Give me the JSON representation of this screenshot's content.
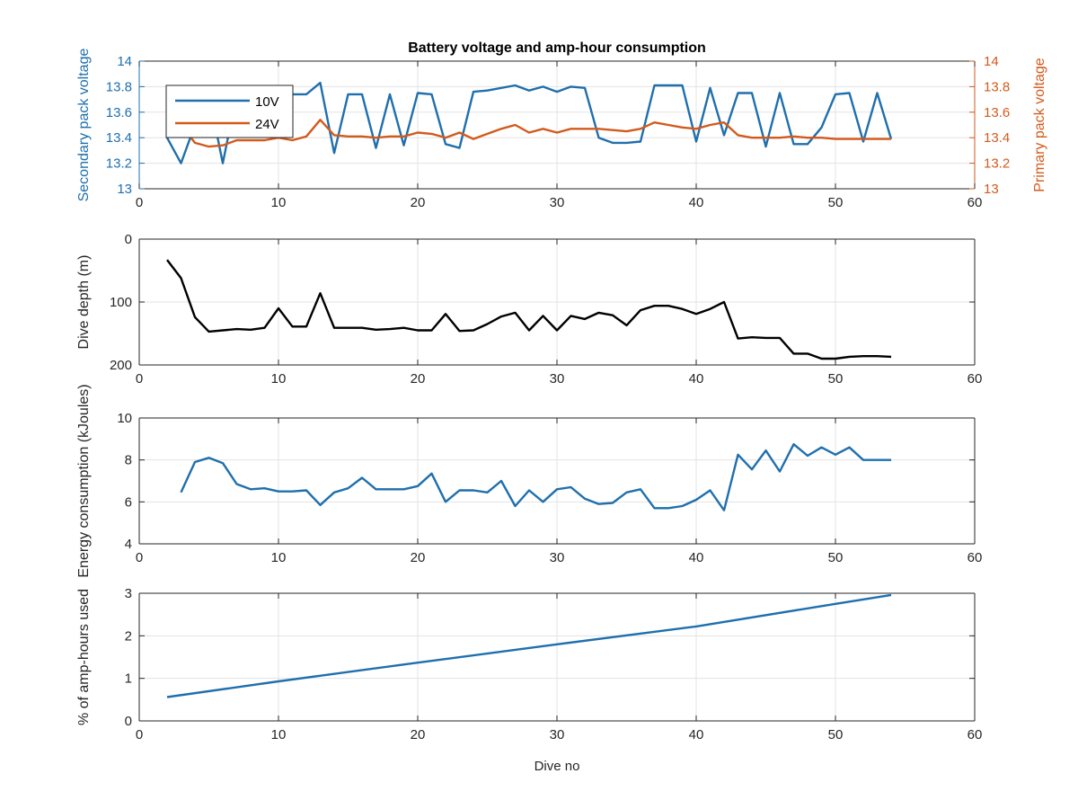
{
  "figure": {
    "title": "Battery voltage and amp-hour consumption",
    "xlabel": "Dive no"
  },
  "colors": {
    "blue": "#1f6fad",
    "orange": "#d35a1c",
    "black": "#000000",
    "grid": "#e3e3e3"
  },
  "chart_data": [
    {
      "type": "line",
      "title": "Battery voltage and amp-hour consumption",
      "xlabel": "",
      "ylabel": "Secondary pack voltage",
      "ylabel_right": "Primary pack voltage",
      "xlim": [
        0,
        60
      ],
      "ylim": [
        13,
        14
      ],
      "ylim_right": [
        13,
        14
      ],
      "xticks": [
        0,
        10,
        20,
        30,
        40,
        50,
        60
      ],
      "yticks": [
        13,
        13.2,
        13.4,
        13.6,
        13.8,
        14
      ],
      "yticks_right": [
        13,
        13.2,
        13.4,
        13.6,
        13.8,
        14
      ],
      "grid": true,
      "legend": "top-left",
      "series": [
        {
          "name": "10V",
          "axis": "left",
          "color": "#1f6fad",
          "x": [
            2,
            3,
            4,
            5,
            6,
            7,
            8,
            9,
            10,
            11,
            12,
            13,
            14,
            15,
            16,
            17,
            18,
            19,
            20,
            21,
            22,
            23,
            24,
            25,
            26,
            27,
            28,
            29,
            30,
            31,
            32,
            33,
            34,
            35,
            36,
            37,
            38,
            39,
            40,
            41,
            42,
            43,
            44,
            45,
            46,
            47,
            48,
            49,
            50,
            51,
            52,
            53,
            54
          ],
          "y": [
            13.4,
            13.2,
            13.5,
            13.74,
            13.2,
            13.74,
            13.74,
            13.74,
            13.74,
            13.74,
            13.74,
            13.83,
            13.28,
            13.74,
            13.74,
            13.32,
            13.74,
            13.34,
            13.75,
            13.74,
            13.35,
            13.32,
            13.76,
            13.77,
            13.79,
            13.81,
            13.77,
            13.8,
            13.76,
            13.8,
            13.79,
            13.4,
            13.36,
            13.36,
            13.37,
            13.81,
            13.81,
            13.81,
            13.37,
            13.79,
            13.42,
            13.75,
            13.75,
            13.33,
            13.75,
            13.35,
            13.35,
            13.48,
            13.74,
            13.75,
            13.37,
            13.75,
            13.39
          ]
        },
        {
          "name": "24V",
          "axis": "right",
          "color": "#d35a1c",
          "x": [
            2,
            3,
            4,
            5,
            6,
            7,
            8,
            9,
            10,
            11,
            12,
            13,
            14,
            15,
            16,
            17,
            18,
            19,
            20,
            21,
            22,
            23,
            24,
            25,
            26,
            27,
            28,
            29,
            30,
            31,
            32,
            33,
            34,
            35,
            36,
            37,
            38,
            39,
            40,
            41,
            42,
            43,
            44,
            45,
            46,
            47,
            48,
            49,
            50,
            51,
            52,
            53,
            54
          ],
          "y": [
            13.53,
            13.5,
            13.36,
            13.33,
            13.34,
            13.38,
            13.38,
            13.38,
            13.4,
            13.38,
            13.41,
            13.54,
            13.42,
            13.41,
            13.41,
            13.4,
            13.41,
            13.41,
            13.44,
            13.43,
            13.4,
            13.44,
            13.39,
            13.43,
            13.47,
            13.5,
            13.44,
            13.47,
            13.44,
            13.47,
            13.47,
            13.47,
            13.46,
            13.45,
            13.47,
            13.52,
            13.5,
            13.48,
            13.47,
            13.5,
            13.52,
            13.42,
            13.4,
            13.4,
            13.4,
            13.41,
            13.4,
            13.4,
            13.39,
            13.39,
            13.39,
            13.39,
            13.39
          ]
        }
      ]
    },
    {
      "type": "line",
      "title": "",
      "xlabel": "",
      "ylabel": "Dive depth (m)",
      "xlim": [
        0,
        60
      ],
      "ylim": [
        0,
        200
      ],
      "y_reversed": true,
      "xticks": [
        0,
        10,
        20,
        30,
        40,
        50,
        60
      ],
      "yticks": [
        0,
        100,
        200
      ],
      "grid": true,
      "series": [
        {
          "color": "#000000",
          "x": [
            2,
            3,
            4,
            5,
            6,
            7,
            8,
            9,
            10,
            11,
            12,
            13,
            14,
            15,
            16,
            17,
            18,
            19,
            20,
            21,
            22,
            23,
            24,
            25,
            26,
            27,
            28,
            29,
            30,
            31,
            32,
            33,
            34,
            35,
            36,
            37,
            38,
            39,
            40,
            41,
            42,
            43,
            44,
            45,
            46,
            47,
            48,
            49,
            50,
            51,
            52,
            53,
            54
          ],
          "y": [
            33,
            62,
            124,
            147,
            145,
            143,
            144,
            141,
            110,
            139,
            139,
            86,
            141,
            141,
            141,
            144,
            143,
            141,
            145,
            145,
            119,
            146,
            145,
            135,
            123,
            117,
            145,
            122,
            145,
            122,
            127,
            117,
            121,
            137,
            113,
            106,
            106,
            111,
            119,
            111,
            100,
            158,
            156,
            157,
            157,
            182,
            182,
            190,
            190,
            187,
            186,
            186,
            187
          ]
        }
      ]
    },
    {
      "type": "line",
      "title": "",
      "xlabel": "",
      "ylabel": "Energy consumption (kJoules)",
      "xlim": [
        0,
        60
      ],
      "ylim": [
        4,
        10
      ],
      "xticks": [
        0,
        10,
        20,
        30,
        40,
        50,
        60
      ],
      "yticks": [
        4,
        6,
        8,
        10
      ],
      "grid": true,
      "series": [
        {
          "color": "#1f6fad",
          "x": [
            3,
            4,
            5,
            6,
            7,
            8,
            9,
            10,
            11,
            12,
            13,
            14,
            15,
            16,
            17,
            18,
            19,
            20,
            21,
            22,
            23,
            24,
            25,
            26,
            27,
            28,
            29,
            30,
            31,
            32,
            33,
            34,
            35,
            36,
            37,
            38,
            39,
            40,
            41,
            42,
            43,
            44,
            45,
            46,
            47,
            48,
            49,
            50,
            51,
            52,
            53,
            54
          ],
          "y": [
            6.45,
            7.9,
            8.1,
            7.85,
            6.85,
            6.6,
            6.65,
            6.5,
            6.5,
            6.55,
            5.85,
            6.45,
            6.65,
            7.15,
            6.6,
            6.6,
            6.6,
            6.75,
            7.35,
            6.0,
            6.55,
            6.55,
            6.45,
            7.0,
            5.8,
            6.55,
            6.0,
            6.6,
            6.7,
            6.15,
            5.9,
            5.95,
            6.45,
            6.6,
            5.7,
            5.7,
            5.8,
            6.1,
            6.55,
            5.6,
            8.25,
            7.55,
            8.45,
            7.45,
            8.75,
            8.2,
            8.6,
            8.25,
            8.6,
            8.0,
            8.0,
            8.0
          ]
        }
      ]
    },
    {
      "type": "line",
      "title": "",
      "xlabel": "Dive no",
      "ylabel": "% of amp-hours used",
      "xlim": [
        0,
        60
      ],
      "ylim": [
        0,
        3
      ],
      "xticks": [
        0,
        10,
        20,
        30,
        40,
        50,
        60
      ],
      "yticks": [
        0,
        1,
        2,
        3
      ],
      "grid": true,
      "series": [
        {
          "color": "#1f6fad",
          "x": [
            2,
            10,
            20,
            30,
            40,
            50,
            54
          ],
          "y": [
            0.56,
            0.93,
            1.37,
            1.8,
            2.22,
            2.75,
            2.96
          ]
        }
      ]
    }
  ]
}
